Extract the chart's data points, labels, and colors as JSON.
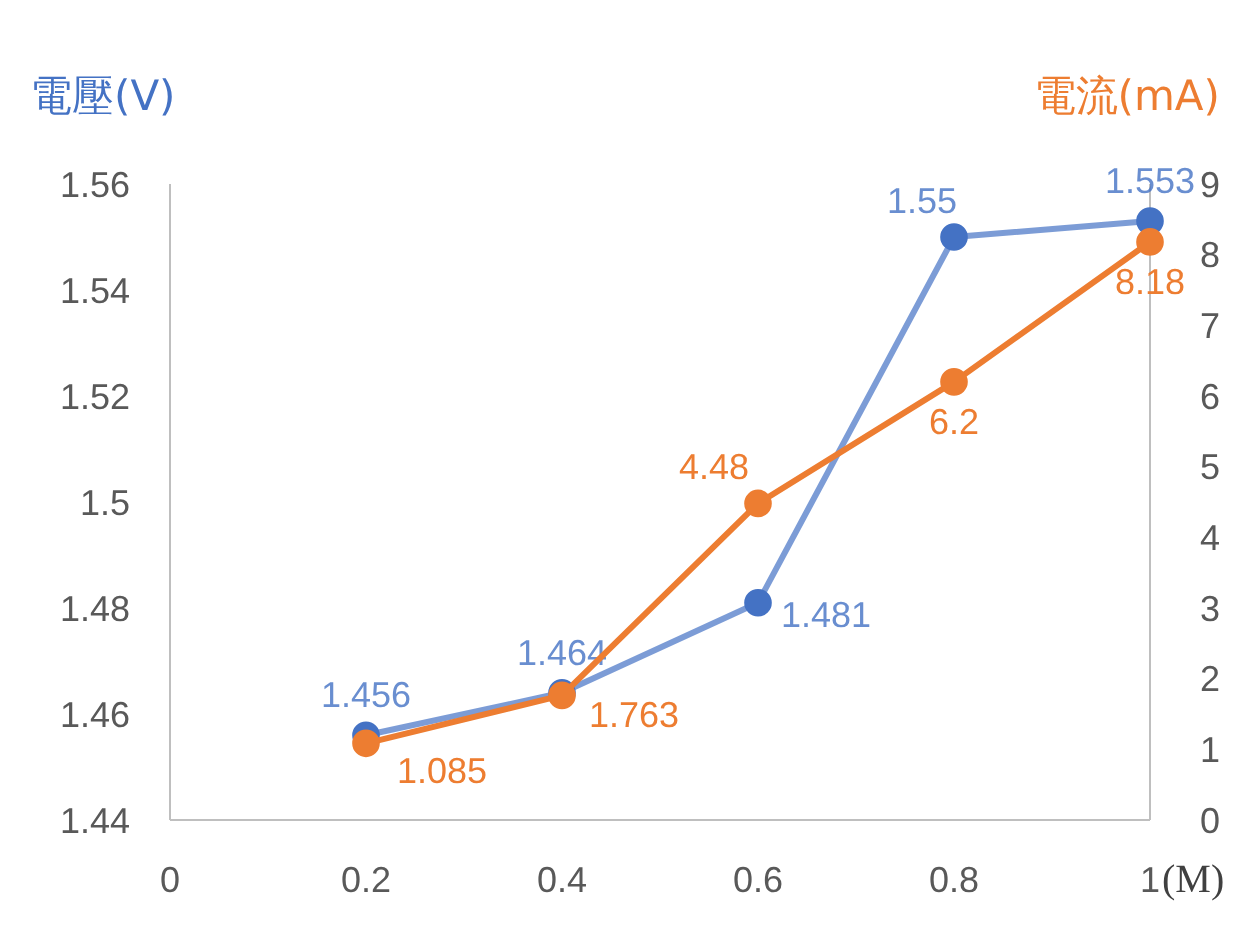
{
  "chart_data": {
    "type": "line",
    "x": [
      0.2,
      0.4,
      0.6,
      0.8,
      1
    ],
    "series": [
      {
        "color": "#4472c4",
        "values": [
          1.456,
          1.464,
          1.481,
          1.55,
          1.553
        ]
      },
      {
        "color": "#ed7d31",
        "values": [
          1.085,
          1.763,
          4.48,
          6.2,
          8.18
        ],
        "axis": "y2"
      }
    ],
    "ylabel": "電壓(V)",
    "y2label": "電流(mA)",
    "xlabel": "(M)",
    "xlim": [
      0,
      1
    ],
    "xticks": [
      0,
      0.2,
      0.4,
      0.6,
      0.8,
      1
    ],
    "ylim": [
      1.44,
      1.56
    ],
    "yticks": [
      1.44,
      1.46,
      1.48,
      1.5,
      1.52,
      1.54,
      1.56
    ],
    "y2lim": [
      0,
      9
    ],
    "y2ticks": [
      0,
      1,
      2,
      3,
      4,
      5,
      6,
      7,
      8,
      9
    ],
    "data_labels": true,
    "marker": "circle",
    "line_style": "solid",
    "grid": false
  }
}
